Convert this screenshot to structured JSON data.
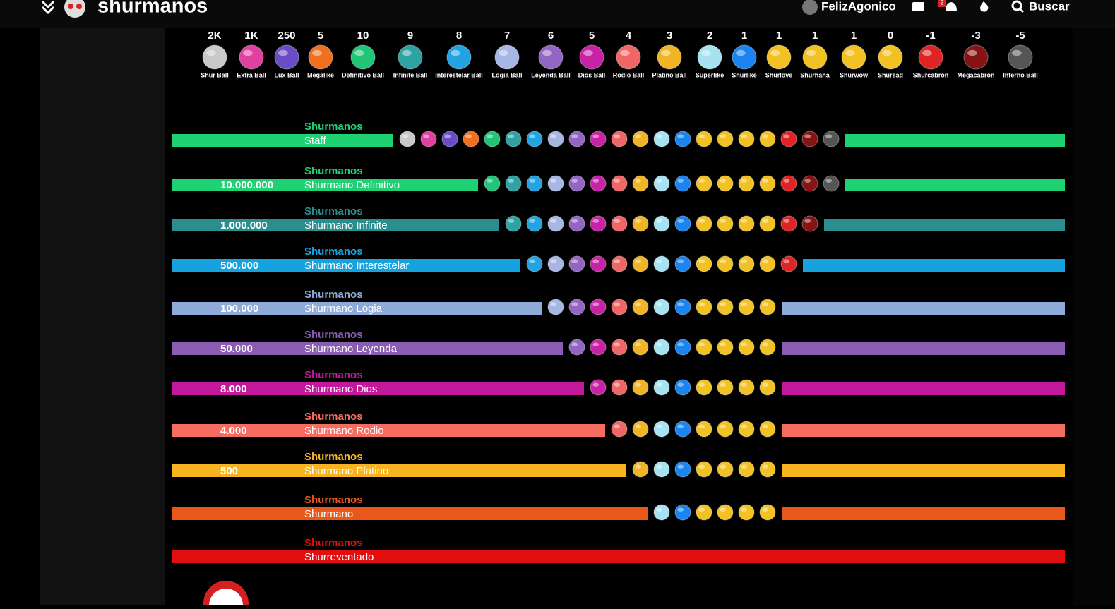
{
  "header": {
    "logo": "shurmanos",
    "user": "FelizAgonico",
    "notifications": "2",
    "search": "Buscar"
  },
  "balls": [
    {
      "value": "2K",
      "name": "Shur Ball",
      "color": "#c9c9c9"
    },
    {
      "value": "1K",
      "name": "Extra Ball",
      "color": "#e040a0"
    },
    {
      "value": "250",
      "name": "Lux Ball",
      "color": "#6a4cc8"
    },
    {
      "value": "5",
      "name": "Megalike",
      "color": "#f07020"
    },
    {
      "value": "10",
      "name": "Definitivo Ball",
      "color": "#22c477"
    },
    {
      "value": "9",
      "name": "Infinite Ball",
      "color": "#2fa3a3"
    },
    {
      "value": "8",
      "name": "Interestelar Ball",
      "color": "#22a4e2"
    },
    {
      "value": "7",
      "name": "Logia Ball",
      "color": "#a8b6e4"
    },
    {
      "value": "6",
      "name": "Leyenda Ball",
      "color": "#9466c4"
    },
    {
      "value": "5",
      "name": "Dios Ball",
      "color": "#c822a6"
    },
    {
      "value": "4",
      "name": "Rodio Ball",
      "color": "#f06666"
    },
    {
      "value": "3",
      "name": "Platino Ball",
      "color": "#f0b424"
    },
    {
      "value": "2",
      "name": "Superlike",
      "color": "#a6e2f2"
    },
    {
      "value": "1",
      "name": "Shurlike",
      "color": "#1a84f0"
    },
    {
      "value": "1",
      "name": "Shurlove",
      "color": "#f2c224"
    },
    {
      "value": "1",
      "name": "Shurhaha",
      "color": "#f2c224"
    },
    {
      "value": "1",
      "name": "Shurwow",
      "color": "#f2c224"
    },
    {
      "value": "0",
      "name": "Shursad",
      "color": "#f2c224"
    },
    {
      "value": "-1",
      "name": "Shurcabrón",
      "color": "#e02424"
    },
    {
      "value": "-3",
      "name": "Megacabrón",
      "color": "#861414"
    },
    {
      "value": "-5",
      "name": "Inferno Ball",
      "color": "#555555"
    }
  ],
  "ranks": [
    {
      "group": "Shurmanos",
      "name": "Staff",
      "color": "#1ed273"
    },
    {
      "group": "Shurmanos",
      "threshold": "10.000.000",
      "name": "Shurmano Definitivo",
      "color": "#1ed273"
    },
    {
      "group": "Shurmanos",
      "threshold": "1.000.000",
      "name": "Shurmano Infinite",
      "color": "#2a8e8e"
    },
    {
      "group": "Shurmanos",
      "threshold": "500.000",
      "name": "Shurmano Interestelar",
      "color": "#16a2de"
    },
    {
      "group": "Shurmanos",
      "threshold": "100.000",
      "name": "Shurmano Logia",
      "color": "#8eaad8"
    },
    {
      "group": "Shurmanos",
      "threshold": "50.000",
      "name": "Shurmano Leyenda",
      "color": "#8a5cb2"
    },
    {
      "group": "Shurmanos",
      "threshold": "8.000",
      "name": "Shurmano Dios",
      "color": "#c4189c"
    },
    {
      "group": "Shurmanos",
      "threshold": "4.000",
      "name": "Shurmano Rodio",
      "color": "#f56c60"
    },
    {
      "group": "Shurmanos",
      "threshold": "500",
      "name": "Shurmano Platino",
      "color": "#f8b420"
    },
    {
      "group": "Shurmanos",
      "name": "Shurmano",
      "color": "#e8581a"
    },
    {
      "group": "Shurmanos",
      "name": "Shurreventado",
      "color": "#e00e0e"
    }
  ]
}
